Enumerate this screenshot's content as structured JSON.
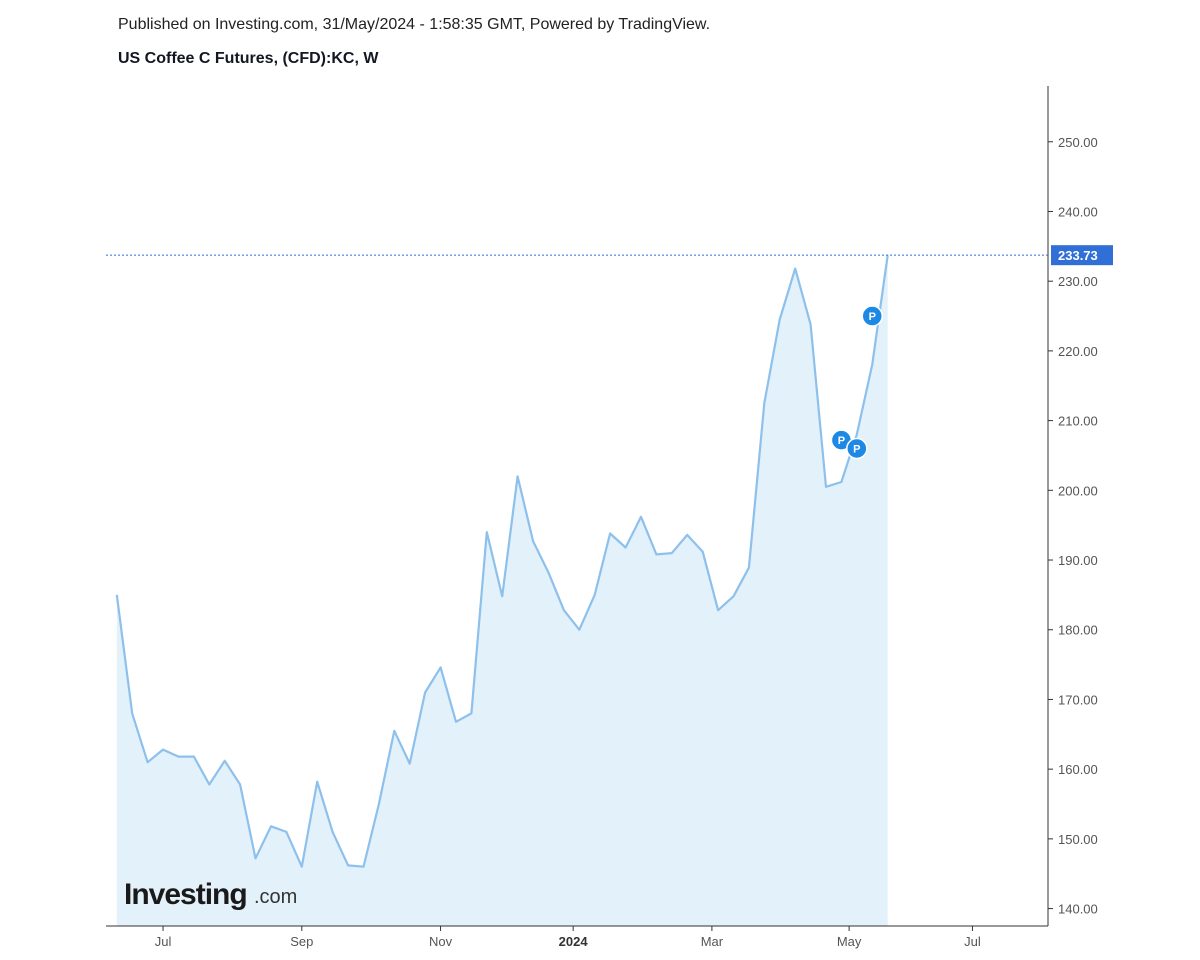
{
  "header": {
    "published": "Published on Investing.com, 31/May/2024 - 1:58:35 GMT, Powered by TradingView.",
    "symbol": "US Coffee C Futures, (CFD):KC, W"
  },
  "watermark": {
    "brand": "Investing",
    "suffix": ".com"
  },
  "chart_data": {
    "type": "area",
    "ylim": [
      137.5,
      258
    ],
    "y_ticks": [
      140,
      150,
      160,
      170,
      180,
      190,
      200,
      210,
      220,
      230,
      240,
      250
    ],
    "y_tick_labels": [
      "140.00",
      "150.00",
      "160.00",
      "170.00",
      "180.00",
      "190.00",
      "200.00",
      "210.00",
      "220.00",
      "230.00",
      "240.00",
      "250.00"
    ],
    "x_ticks": [
      {
        "label": "Jul",
        "index": 3,
        "bold": false
      },
      {
        "label": "Sep",
        "index": 12,
        "bold": false
      },
      {
        "label": "Nov",
        "index": 21,
        "bold": false
      },
      {
        "label": "2024",
        "index": 29.6,
        "bold": true
      },
      {
        "label": "Mar",
        "index": 38.6,
        "bold": false
      },
      {
        "label": "May",
        "index": 47.5,
        "bold": false
      },
      {
        "label": "Jul",
        "index": 55.5,
        "bold": false
      }
    ],
    "x_range": [
      -0.7,
      60.4
    ],
    "values": [
      185.0,
      168.0,
      161.0,
      162.8,
      161.8,
      161.8,
      157.8,
      161.2,
      157.8,
      147.2,
      151.8,
      151.0,
      146.0,
      158.2,
      151.0,
      146.2,
      146.0,
      155.0,
      165.5,
      160.8,
      171.0,
      174.6,
      166.8,
      168.0,
      194.0,
      184.8,
      202.0,
      192.7,
      188.2,
      182.8,
      180.0,
      185.0,
      193.8,
      191.8,
      196.2,
      190.8,
      191.0,
      193.6,
      191.2,
      182.8,
      184.8,
      188.9,
      212.5,
      224.5,
      231.8,
      223.8,
      200.5,
      201.2,
      208.0,
      218.0,
      233.73
    ],
    "last_value": 233.73,
    "last_value_label": "233.73",
    "markers": [
      {
        "label": "P",
        "index": 49.0,
        "value": 225.0
      },
      {
        "label": "P",
        "index": 47.0,
        "value": 207.2
      },
      {
        "label": "P",
        "index": 48.0,
        "value": 206.0
      }
    ],
    "line_color": "#8ec0ec",
    "fill_color": "#e3f1fb",
    "last_label_color": "#2f6fd6",
    "marker_color": "#1e88e5"
  }
}
